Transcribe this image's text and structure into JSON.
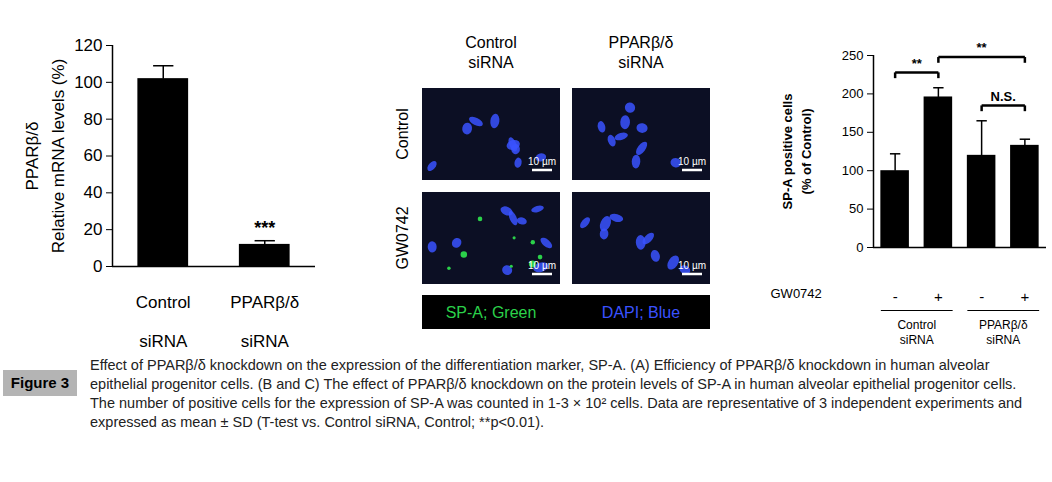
{
  "chart_data": [
    {
      "type": "bar",
      "ylabel": "PPARβ/δ\nRelative mRNA levels (%)",
      "categories": [
        "Control siRNA",
        "PPARβ/δ siRNA"
      ],
      "values": [
        102,
        12
      ],
      "errors": [
        7,
        2
      ],
      "color": "#000000",
      "ylim": [
        0,
        120
      ],
      "yticks": [
        0,
        20,
        40,
        60,
        80,
        100,
        120
      ],
      "annotations": [
        {
          "text": "***",
          "category": 1
        }
      ]
    },
    {
      "type": "bar",
      "ylabel": "SP-A positive cells\n(% of Control)",
      "categories": [
        "-",
        "+",
        "-",
        "+"
      ],
      "x_row_label": "GW0742",
      "groups": [
        {
          "label": "Control siRNA",
          "categories": [
            0,
            1
          ]
        },
        {
          "label": "PPARβ/δ siRNA",
          "categories": [
            2,
            3
          ]
        }
      ],
      "values": [
        100,
        196,
        120,
        133
      ],
      "errors": [
        22,
        12,
        45,
        8
      ],
      "color": "#000000",
      "ylim": [
        0,
        250
      ],
      "yticks": [
        0,
        50,
        100,
        150,
        200,
        250
      ],
      "annotations": [
        {
          "text": "**",
          "from": 0,
          "to": 1
        },
        {
          "text": "**",
          "from": 1,
          "to": 3
        },
        {
          "text": "N.S.",
          "from": 2,
          "to": 3
        }
      ]
    }
  ],
  "micrographs": {
    "columns": [
      "Control siRNA",
      "PPARβ/δ siRNA"
    ],
    "rows": [
      "Control",
      "GW0742"
    ],
    "scale_bar": "10 µm",
    "legend": [
      {
        "label": "SP-A; Green",
        "color": "#2bd14a"
      },
      {
        "label": "DAPI; Blue",
        "color": "#3a52ff"
      }
    ]
  },
  "caption": {
    "label": "Figure 3",
    "text": "Effect of PPARβ/δ knockdown on the expression of the differentiation marker, SP-A. (A) Efficiency of PPARβ/δ knockdown in human alveolar epithelial progenitor cells. (B and C) The effect of PPARβ/δ knockdown on the protein levels of SP-A in human alveolar epithelial progenitor cells. The number of positive cells for the expression of SP-A was counted in 1-3 × 10² cells. Data are representative of 3 independent experiments and expressed as mean ± SD (T-test vs. Control siRNA, Control; **p<0.01)."
  }
}
